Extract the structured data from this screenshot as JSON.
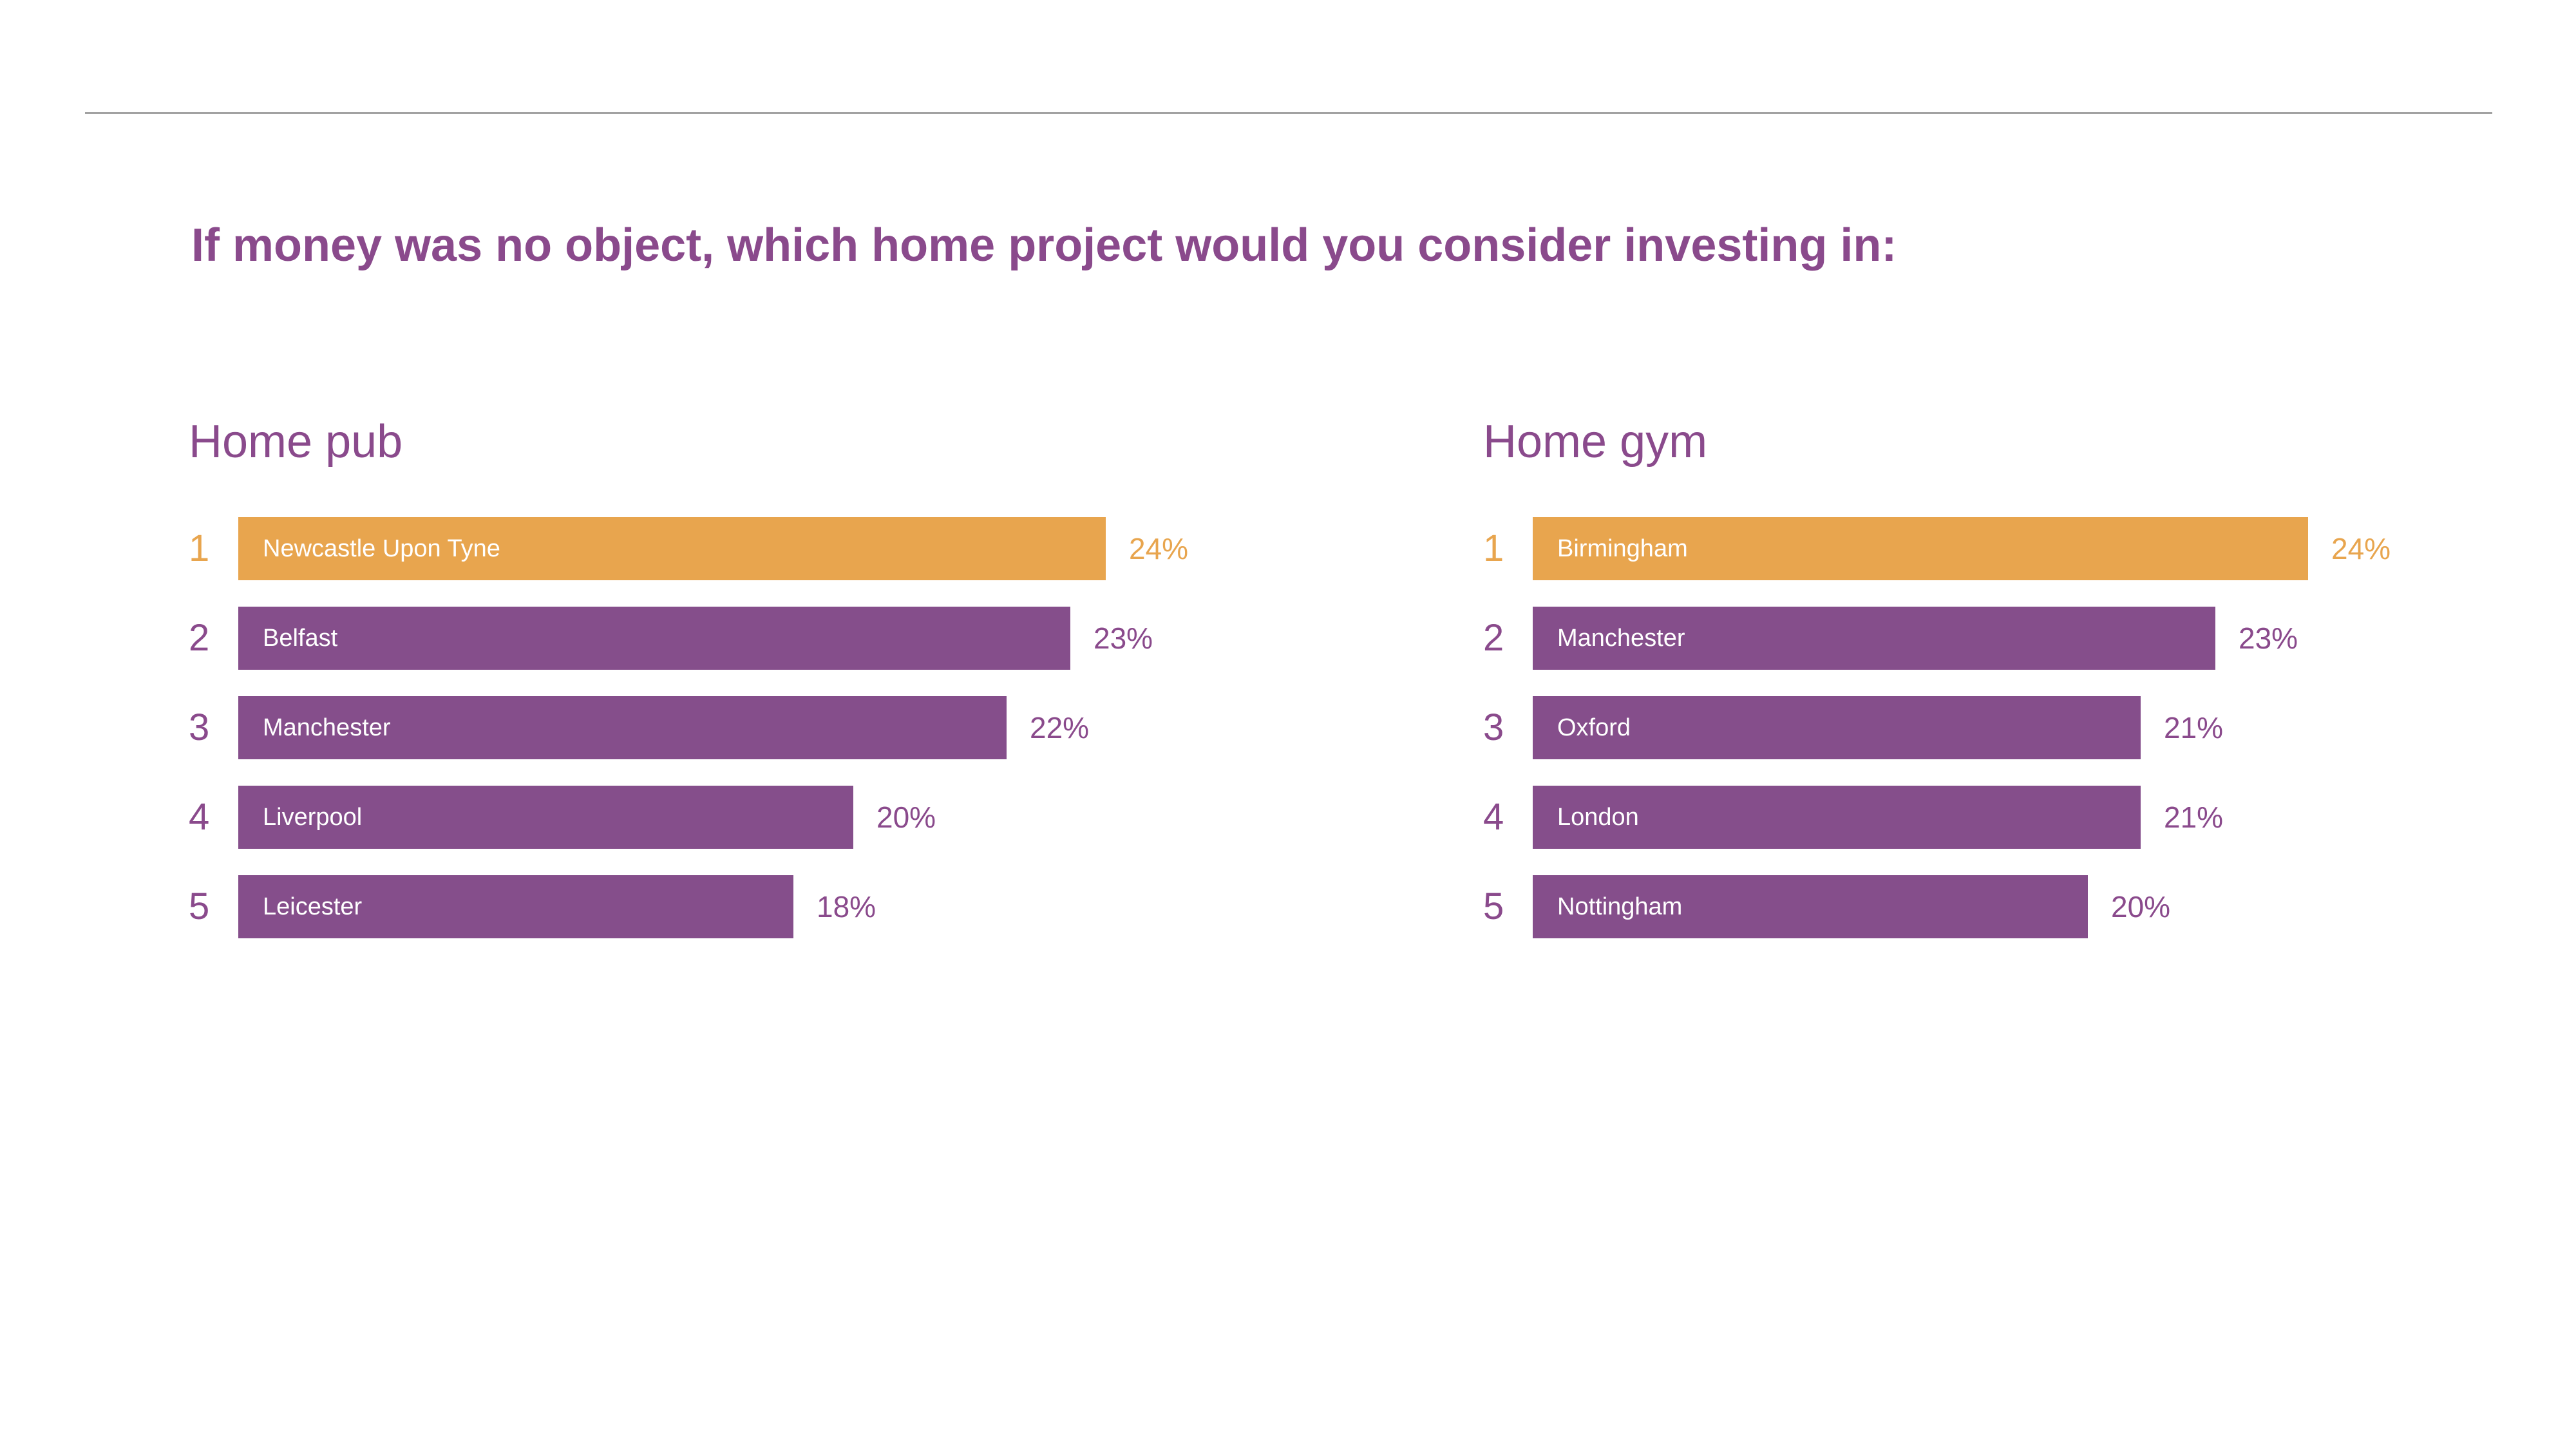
{
  "page": {
    "title": "If money was no object, which home project would you consider investing in:"
  },
  "colors": {
    "background": "#ffffff",
    "purple_text": "#8a4a8c",
    "purple_bar": "#854e8b",
    "orange": "#e8a54e",
    "bar_label": "#ffffff",
    "divider": "#a2a2a2"
  },
  "chart_data": [
    {
      "type": "bar",
      "orientation": "horizontal",
      "title": "Home pub",
      "unit": "%",
      "value_range": [
        0,
        24
      ],
      "legend": "none",
      "grid": false,
      "categories": [
        "Newcastle Upon Tyne",
        "Belfast",
        "Manchester",
        "Liverpool",
        "Leicester"
      ],
      "values": [
        24,
        23,
        22,
        20,
        18
      ],
      "rows": [
        {
          "rank": "1",
          "label": "Newcastle Upon Tyne",
          "value": 24,
          "value_label": "24%",
          "highlight": true,
          "width_frac": 1.0
        },
        {
          "rank": "2",
          "label": "Belfast",
          "value": 23,
          "value_label": "23%",
          "highlight": false,
          "width_frac": 0.959
        },
        {
          "rank": "3",
          "label": "Manchester",
          "value": 22,
          "value_label": "22%",
          "highlight": false,
          "width_frac": 0.886
        },
        {
          "rank": "4",
          "label": "Liverpool",
          "value": 20,
          "value_label": "20%",
          "highlight": false,
          "width_frac": 0.709
        },
        {
          "rank": "5",
          "label": "Leicester",
          "value": 18,
          "value_label": "18%",
          "highlight": false,
          "width_frac": 0.64
        }
      ]
    },
    {
      "type": "bar",
      "orientation": "horizontal",
      "title": "Home gym",
      "unit": "%",
      "value_range": [
        0,
        24
      ],
      "legend": "none",
      "grid": false,
      "categories": [
        "Birmingham",
        "Manchester",
        "Oxford",
        "London",
        "Nottingham"
      ],
      "values": [
        24,
        23,
        21,
        21,
        20
      ],
      "rows": [
        {
          "rank": "1",
          "label": "Birmingham",
          "value": 24,
          "value_label": "24%",
          "highlight": true,
          "width_frac": 0.894
        },
        {
          "rank": "2",
          "label": "Manchester",
          "value": 23,
          "value_label": "23%",
          "highlight": false,
          "width_frac": 0.787
        },
        {
          "rank": "3",
          "label": "Oxford",
          "value": 21,
          "value_label": "21%",
          "highlight": false,
          "width_frac": 0.701
        },
        {
          "rank": "4",
          "label": "London",
          "value": 21,
          "value_label": "21%",
          "highlight": false,
          "width_frac": 0.701
        },
        {
          "rank": "5",
          "label": "Nottingham",
          "value": 20,
          "value_label": "20%",
          "highlight": false,
          "width_frac": 0.64
        }
      ]
    }
  ]
}
